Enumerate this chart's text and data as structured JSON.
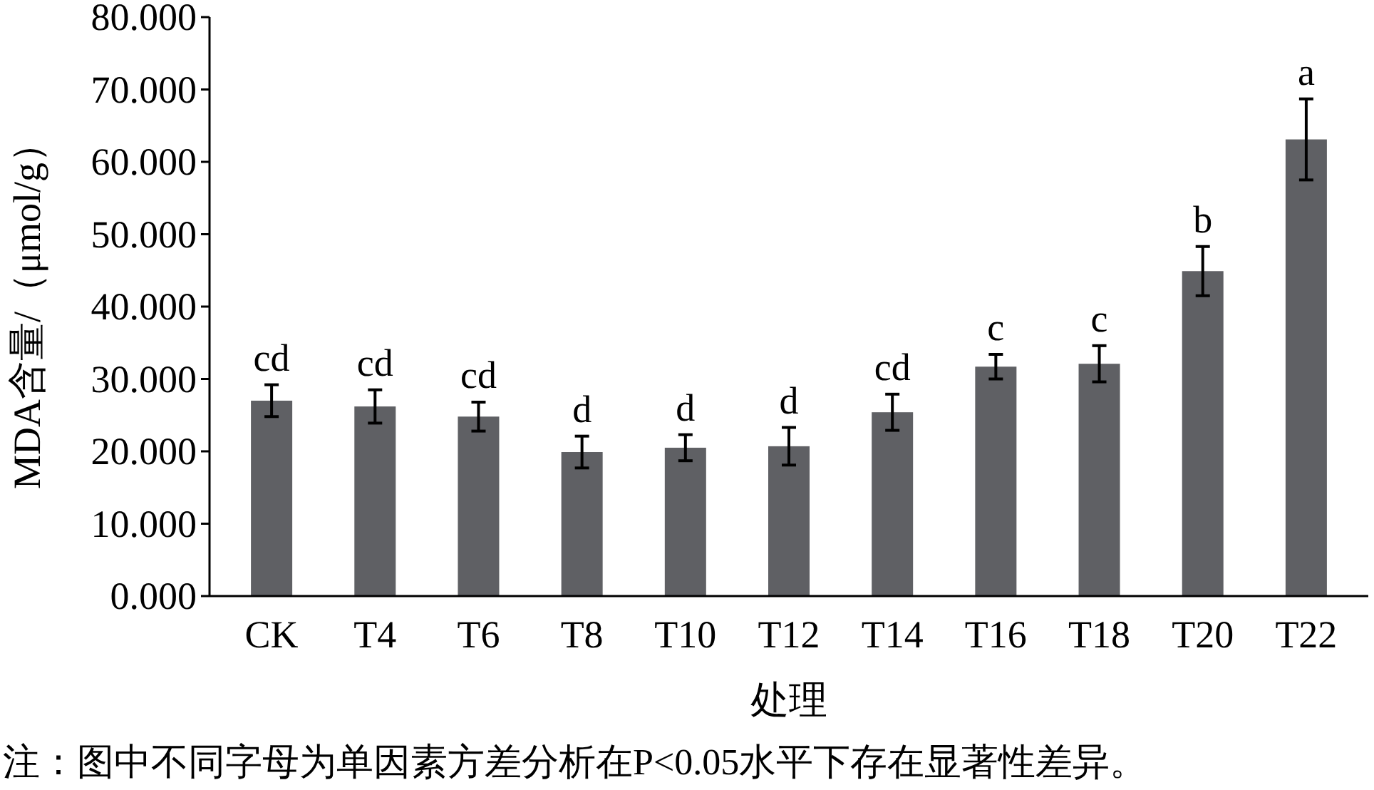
{
  "chart_data": {
    "type": "bar",
    "xlabel": "处理",
    "ylabel": "MDA含量/（μmol/g）",
    "color": "#5f6064",
    "categories": [
      "CK",
      "T4",
      "T6",
      "T8",
      "T10",
      "T12",
      "T14",
      "T16",
      "T18",
      "T20",
      "T22"
    ],
    "values": [
      27.0,
      26.2,
      24.8,
      19.9,
      20.5,
      20.7,
      25.4,
      31.7,
      32.1,
      44.9,
      63.1
    ],
    "errors": [
      2.2,
      2.3,
      2.0,
      2.2,
      1.8,
      2.6,
      2.5,
      1.7,
      2.5,
      3.4,
      5.6
    ],
    "ylim": [
      0,
      80
    ],
    "yticks": [
      {
        "value": 0,
        "label": "0.000"
      },
      {
        "value": 10,
        "label": "10.000"
      },
      {
        "value": 20,
        "label": "20.000"
      },
      {
        "value": 30,
        "label": "30.000"
      },
      {
        "value": 40,
        "label": "40.000"
      },
      {
        "value": 50,
        "label": "50.000"
      },
      {
        "value": 60,
        "label": "60.000"
      },
      {
        "value": 70,
        "label": "70.000"
      },
      {
        "value": 80,
        "label": "80.000"
      }
    ],
    "annotations": [
      {
        "text": "cd",
        "x": "CK",
        "y": 27.0
      },
      {
        "text": "cd",
        "x": "T4",
        "y": 26.2
      },
      {
        "text": "cd",
        "x": "T6",
        "y": 24.8
      },
      {
        "text": "d",
        "x": "T8",
        "y": 19.9
      },
      {
        "text": "d",
        "x": "T10",
        "y": 20.5
      },
      {
        "text": "d",
        "x": "T12",
        "y": 20.7
      },
      {
        "text": "cd",
        "x": "T14",
        "y": 25.4
      },
      {
        "text": "c",
        "x": "T16",
        "y": 31.7
      },
      {
        "text": "c",
        "x": "T18",
        "y": 32.1
      },
      {
        "text": "b",
        "x": "T20",
        "y": 44.9
      },
      {
        "text": "a",
        "x": "T22",
        "y": 63.1
      },
      "注：图中不同字母为单因素方差分析在P<0.05水平下存在显著性差异。"
    ]
  }
}
